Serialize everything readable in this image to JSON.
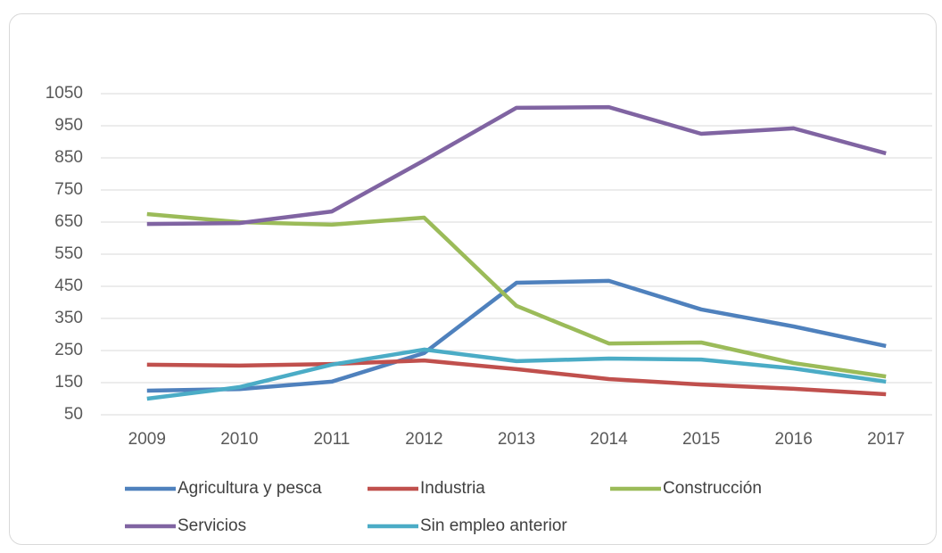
{
  "chart_data": {
    "type": "line",
    "categories": [
      "2009",
      "2010",
      "2011",
      "2012",
      "2013",
      "2014",
      "2015",
      "2016",
      "2017"
    ],
    "series": [
      {
        "name": "Agricultura y pesca",
        "color": "#4f81bd",
        "values": [
          125,
          130,
          153,
          242,
          461,
          467,
          378,
          325,
          264
        ]
      },
      {
        "name": "Industria",
        "color": "#c0504d",
        "values": [
          206,
          203,
          208,
          219,
          192,
          161,
          144,
          131,
          114
        ]
      },
      {
        "name": "Construcción",
        "color": "#9bbb59",
        "values": [
          675,
          650,
          642,
          664,
          389,
          272,
          275,
          211,
          169
        ]
      },
      {
        "name": "Servicios",
        "color": "#8064a2",
        "values": [
          644,
          647,
          683,
          842,
          1006,
          1008,
          925,
          942,
          864
        ]
      },
      {
        "name": "Sin empleo anterior",
        "color": "#4bacc6",
        "values": [
          100,
          136,
          206,
          253,
          217,
          225,
          222,
          194,
          153
        ]
      }
    ],
    "ylim": [
      50,
      1050
    ],
    "yticks": [
      50,
      150,
      250,
      350,
      450,
      550,
      650,
      750,
      850,
      950,
      1050
    ],
    "grid": true,
    "legend": "bottom"
  }
}
